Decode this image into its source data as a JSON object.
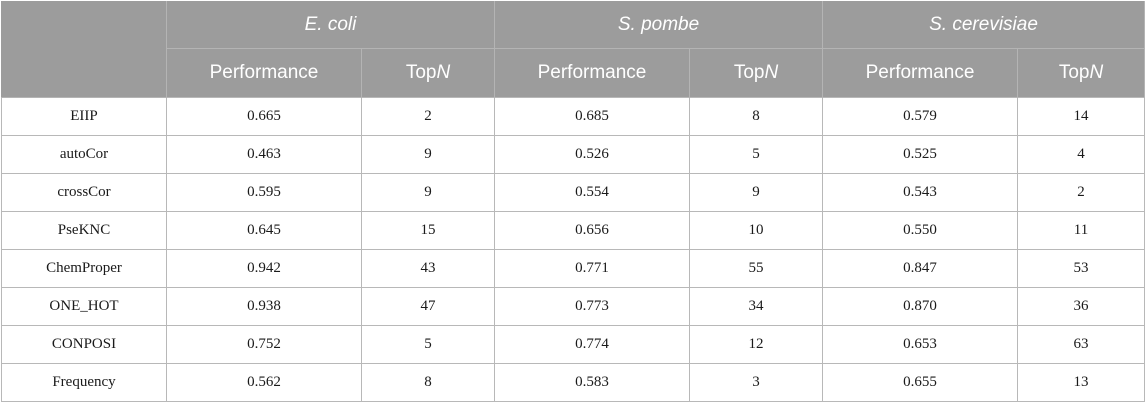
{
  "table": {
    "species": [
      "E. coli",
      "S. pombe",
      "S. cerevisiae"
    ],
    "metric_performance": "Performance",
    "metric_top_prefix": "Top",
    "metric_top_suffix": "N",
    "rows": [
      {
        "name": "EIIP",
        "values": [
          "0.665",
          "2",
          "0.685",
          "8",
          "0.579",
          "14"
        ]
      },
      {
        "name": "autoCor",
        "values": [
          "0.463",
          "9",
          "0.526",
          "5",
          "0.525",
          "4"
        ]
      },
      {
        "name": "crossCor",
        "values": [
          "0.595",
          "9",
          "0.554",
          "9",
          "0.543",
          "2"
        ]
      },
      {
        "name": "PseKNC",
        "values": [
          "0.645",
          "15",
          "0.656",
          "10",
          "0.550",
          "11"
        ]
      },
      {
        "name": "ChemProper",
        "values": [
          "0.942",
          "43",
          "0.771",
          "55",
          "0.847",
          "53"
        ]
      },
      {
        "name": "ONE_HOT",
        "values": [
          "0.938",
          "47",
          "0.773",
          "34",
          "0.870",
          "36"
        ]
      },
      {
        "name": "CONPOSI",
        "values": [
          "0.752",
          "5",
          "0.774",
          "12",
          "0.653",
          "63"
        ]
      },
      {
        "name": "Frequency",
        "values": [
          "0.562",
          "8",
          "0.583",
          "3",
          "0.655",
          "13"
        ]
      }
    ]
  },
  "colors": {
    "header_background": "#9c9c9c",
    "header_text": "#ffffff",
    "grid": "#b8b8b8"
  }
}
